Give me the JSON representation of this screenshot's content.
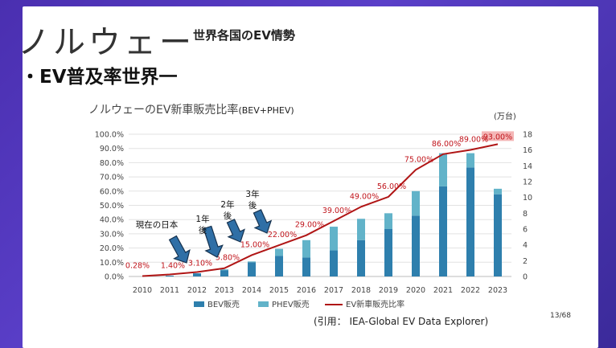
{
  "slide": {
    "title": "ノルウェー",
    "subtitle": "世界各国のEV情勢",
    "bullet": "・EV普及率世界一",
    "chart_title": "ノルウェーのEV新車販売比率",
    "chart_title_suffix": "(BEV+PHEV)",
    "right_axis_unit": "(万台)",
    "source": "(引用：  IEA-Global EV Data Explorer)",
    "page_number": "13/68",
    "annotations": [
      {
        "text": "現在の日本",
        "lines": [
          "現在の日本"
        ]
      },
      {
        "text": "1年後",
        "lines": [
          "1年",
          "後"
        ]
      },
      {
        "text": "2年後",
        "lines": [
          "2年",
          "後"
        ]
      },
      {
        "text": "3年後",
        "lines": [
          "3年",
          "後"
        ]
      }
    ]
  },
  "colors": {
    "bev": "#2e7fad",
    "phev": "#62b3c9",
    "line": "#b01515",
    "label": "#c0151c",
    "arrow_fill": "#2f6fa6",
    "arrow_stroke": "#16324f",
    "highlight": "#f4b6b6"
  },
  "chart_data": {
    "type": "bar",
    "categories": [
      "2010",
      "2011",
      "2012",
      "2013",
      "2014",
      "2015",
      "2016",
      "2017",
      "2018",
      "2019",
      "2020",
      "2021",
      "2022",
      "2023"
    ],
    "series": [
      {
        "name": "BEV販売",
        "axis": "right",
        "values": [
          0.0,
          0.1,
          0.4,
          0.8,
          1.8,
          2.6,
          2.4,
          3.3,
          4.6,
          6.0,
          7.7,
          11.4,
          13.8,
          10.4
        ]
      },
      {
        "name": "PHEV販売",
        "axis": "right",
        "values": [
          0.0,
          0.0,
          0.0,
          0.1,
          0.1,
          0.9,
          2.2,
          3.0,
          2.7,
          2.0,
          3.1,
          4.2,
          1.8,
          0.7
        ]
      },
      {
        "name": "EV新車販売比率",
        "axis": "left",
        "type": "line",
        "values": [
          0.28,
          1.4,
          3.1,
          5.8,
          15.0,
          22.0,
          29.0,
          39.0,
          49.0,
          56.0,
          75.0,
          86.0,
          89.0,
          93.0
        ]
      }
    ],
    "data_labels": [
      "0.28%",
      "1.40%",
      "3.10%",
      "5.80%",
      "15.00%",
      "22.00%",
      "29.00%",
      "39.00%",
      "49.00%",
      "56.00%",
      "75.00%",
      "86.00%",
      "89.00%",
      "93.00%"
    ],
    "left_axis": {
      "ticks": [
        "0.0%",
        "10.0%",
        "20.0%",
        "30.0%",
        "40.0%",
        "50.0%",
        "60.0%",
        "70.0%",
        "80.0%",
        "90.0%",
        "100.0%"
      ],
      "ylim": [
        0,
        100
      ]
    },
    "right_axis": {
      "ticks": [
        "0",
        "2",
        "4",
        "6",
        "8",
        "10",
        "12",
        "14",
        "16",
        "18"
      ],
      "ylim": [
        0,
        18
      ]
    },
    "grid": true,
    "legend_position": "bottom"
  }
}
